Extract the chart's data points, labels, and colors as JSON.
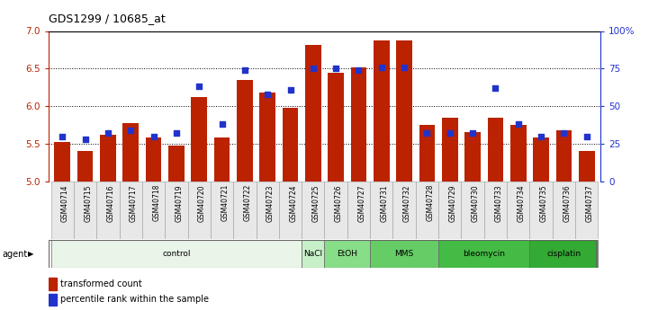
{
  "title": "GDS1299 / 10685_at",
  "samples": [
    "GSM40714",
    "GSM40715",
    "GSM40716",
    "GSM40717",
    "GSM40718",
    "GSM40719",
    "GSM40720",
    "GSM40721",
    "GSM40722",
    "GSM40723",
    "GSM40724",
    "GSM40725",
    "GSM40726",
    "GSM40727",
    "GSM40731",
    "GSM40732",
    "GSM40728",
    "GSM40729",
    "GSM40730",
    "GSM40733",
    "GSM40734",
    "GSM40735",
    "GSM40736",
    "GSM40737"
  ],
  "bar_values": [
    5.52,
    5.4,
    5.62,
    5.78,
    5.58,
    5.48,
    6.12,
    5.58,
    6.35,
    6.18,
    5.98,
    6.82,
    6.45,
    6.51,
    6.87,
    6.87,
    5.75,
    5.85,
    5.65,
    5.85,
    5.75,
    5.58,
    5.68,
    5.4
  ],
  "percentile_values": [
    30,
    28,
    32,
    34,
    30,
    32,
    63,
    38,
    74,
    58,
    61,
    75,
    75,
    74,
    76,
    76,
    32,
    32,
    32,
    62,
    38,
    30,
    32,
    30
  ],
  "bar_color": "#bb2200",
  "dot_color": "#2233cc",
  "ylim_left": [
    5.0,
    7.0
  ],
  "ylim_right": [
    0,
    100
  ],
  "yticks_left": [
    5.0,
    5.5,
    6.0,
    6.5,
    7.0
  ],
  "yticks_right": [
    0,
    25,
    50,
    75,
    100
  ],
  "ytick_labels_right": [
    "0",
    "25",
    "50",
    "75",
    "100%"
  ],
  "gridlines": [
    5.5,
    6.0,
    6.5
  ],
  "agent_groups": [
    {
      "label": "control",
      "start": 0,
      "end": 10,
      "color": "#eaf5ea"
    },
    {
      "label": "NaCl",
      "start": 11,
      "end": 11,
      "color": "#c8f0c8"
    },
    {
      "label": "EtOH",
      "start": 12,
      "end": 13,
      "color": "#88dd88"
    },
    {
      "label": "MMS",
      "start": 14,
      "end": 16,
      "color": "#66cc66"
    },
    {
      "label": "bleomycin",
      "start": 17,
      "end": 20,
      "color": "#44bb44"
    },
    {
      "label": "cisplatin",
      "start": 21,
      "end": 23,
      "color": "#33aa33"
    }
  ],
  "legend_bar_label": "transformed count",
  "legend_dot_label": "percentile rank within the sample",
  "bar_width": 0.7,
  "agent_label": "agent"
}
